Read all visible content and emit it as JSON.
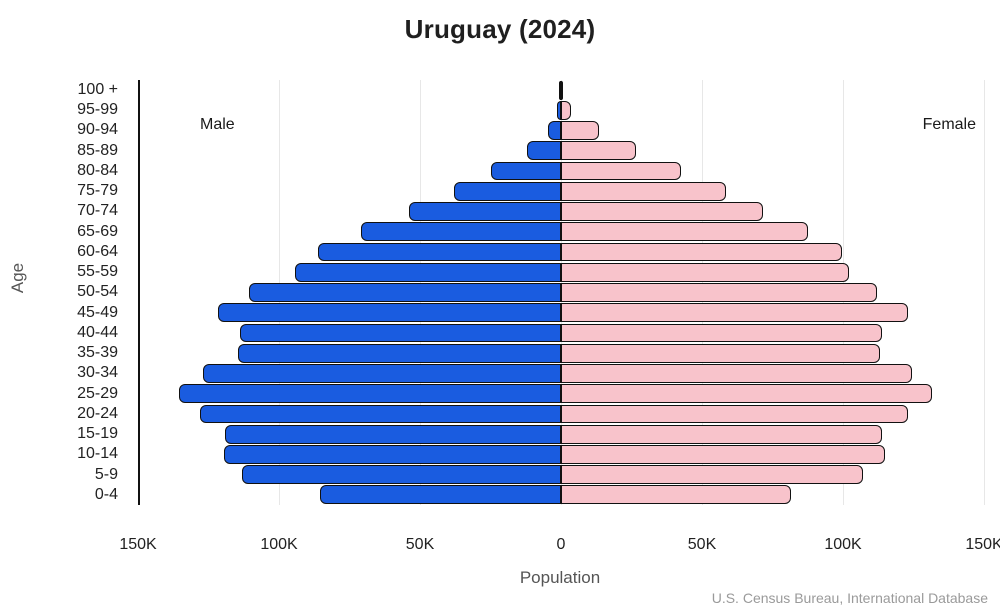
{
  "title": "Uruguay (2024)",
  "labels": {
    "male": "Male",
    "female": "Female"
  },
  "source": "U.S. Census Bureau, International Database",
  "colors": {
    "male_bar": "#1a5ce0",
    "female_bar": "#f8c3cb",
    "bar_border": "#111111",
    "gridline": "#e7e7e7",
    "axis_line": "#111111"
  },
  "chart_data": {
    "type": "bar",
    "subtype": "population-pyramid",
    "title": "Uruguay (2024)",
    "xlabel": "Population",
    "ylabel": "Age",
    "unit": "thousands of people",
    "grid": true,
    "xlim": [
      -150,
      150
    ],
    "x_ticks": [
      "150K",
      "100K",
      "50K",
      "0",
      "50K",
      "100K",
      "150K"
    ],
    "x_tick_values": [
      -150,
      -100,
      -50,
      0,
      50,
      100,
      150
    ],
    "categories": [
      "100 +",
      "95-99",
      "90-94",
      "85-89",
      "80-84",
      "75-79",
      "70-74",
      "65-69",
      "60-64",
      "55-59",
      "50-54",
      "45-49",
      "40-44",
      "35-39",
      "30-34",
      "25-29",
      "20-24",
      "15-19",
      "10-14",
      "5-9",
      "0-4"
    ],
    "series": [
      {
        "name": "Male",
        "side": "left",
        "color": "#1a5ce0",
        "values": [
          0.4,
          1.5,
          4.5,
          12,
          25,
          38,
          54,
          71,
          86,
          94.5,
          110.5,
          121.5,
          114,
          114.5,
          127,
          135.5,
          128,
          119,
          119.5,
          113,
          85.5
        ]
      },
      {
        "name": "Female",
        "side": "right",
        "color": "#f8c3cb",
        "values": [
          0.7,
          3.5,
          13.5,
          26.5,
          42.5,
          58.5,
          71.5,
          87.5,
          99.5,
          102,
          112,
          123,
          114,
          113,
          124.5,
          131.5,
          123,
          114,
          115,
          107,
          81.5
        ]
      }
    ]
  }
}
